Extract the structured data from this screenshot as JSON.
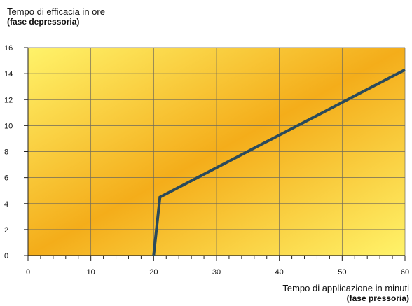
{
  "chart_data": {
    "type": "line",
    "ylabel": "Tempo di efficacia in ore",
    "ylabel_sub": "(fase depressoria)",
    "xlabel": "Tempo di applicazione in minuti",
    "xlabel_sub": "(fase pressoria)",
    "xlim": [
      0,
      60
    ],
    "ylim": [
      0,
      16
    ],
    "x_ticks": [
      "0",
      "10",
      "20",
      "30",
      "40",
      "50",
      "60"
    ],
    "y_ticks": [
      "0",
      "2",
      "4",
      "6",
      "8",
      "10",
      "12",
      "14",
      "16"
    ],
    "grid": true,
    "colors": {
      "line": "#2a4a5c",
      "bg_light": "#fff36a",
      "bg_dark": "#f4ad1a",
      "grid": "#6f6a5c"
    },
    "series": [
      {
        "x": [
          20,
          21,
          60
        ],
        "y": [
          0,
          4.5,
          14.3
        ]
      }
    ]
  }
}
